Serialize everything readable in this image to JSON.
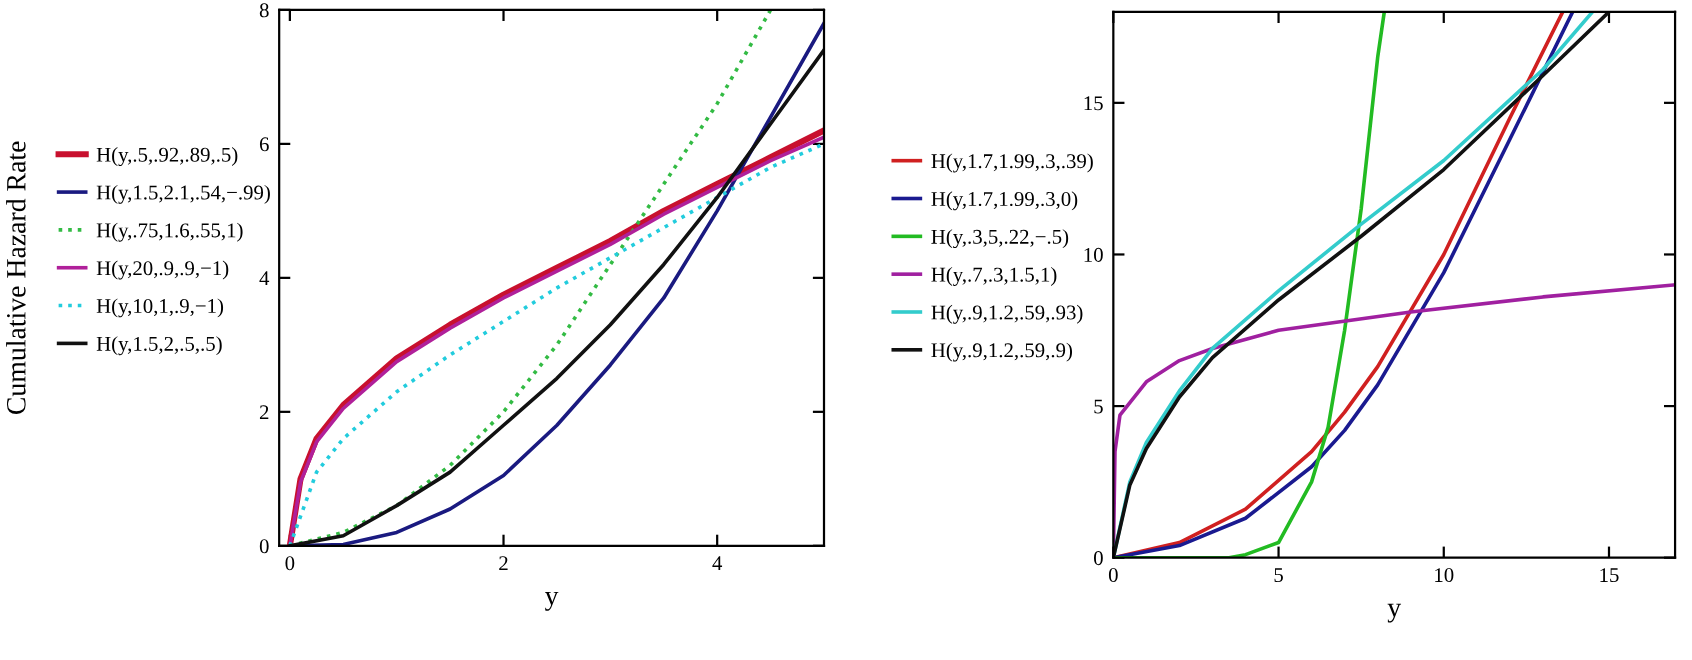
{
  "chart_data": [
    {
      "type": "line",
      "xlabel": "y",
      "ylabel": "Cumulative Hazard Rate",
      "xlim": [
        -0.1,
        5
      ],
      "ylim": [
        0,
        8
      ],
      "xticks": [
        0,
        2,
        4
      ],
      "yticks": [
        0,
        2,
        4,
        6,
        8
      ],
      "legend": "left",
      "series": [
        {
          "name": "H(y,.5,.92,.89,.5)",
          "color": "#c8102e",
          "line_style": "solid",
          "x": [
            0,
            0.1,
            0.25,
            0.5,
            1,
            1.5,
            2,
            2.5,
            3,
            3.5,
            4,
            4.5,
            5
          ],
          "values": [
            0,
            1.0,
            1.6,
            2.1,
            2.8,
            3.3,
            3.75,
            4.15,
            4.55,
            5.0,
            5.4,
            5.8,
            6.2
          ]
        },
        {
          "name": "H(y,1.5,2.1,.54,−.99)",
          "color": "#1a1a80",
          "line_style": "solid",
          "x": [
            0,
            0.5,
            1,
            1.5,
            2,
            2.5,
            3,
            3.5,
            4,
            4.5,
            5
          ],
          "values": [
            0,
            0.02,
            0.2,
            0.55,
            1.05,
            1.8,
            2.7,
            3.7,
            5.0,
            6.4,
            7.8
          ]
        },
        {
          "name": "H(y,.75,1.6,.55,1)",
          "color": "#33bb44",
          "line_style": "dotted",
          "x": [
            0,
            0.5,
            1,
            1.5,
            2,
            2.5,
            3,
            3.5,
            4,
            4.5
          ],
          "values": [
            0,
            0.2,
            0.6,
            1.2,
            2.0,
            3.0,
            4.2,
            5.4,
            6.6,
            8.0
          ]
        },
        {
          "name": "H(y,20,.9,.9,−1)",
          "color": "#b0209a",
          "line_style": "solid",
          "x": [
            0,
            0.1,
            0.25,
            0.5,
            1,
            1.5,
            2,
            2.5,
            3,
            3.5,
            4,
            4.5,
            5
          ],
          "values": [
            0,
            0.95,
            1.55,
            2.05,
            2.75,
            3.25,
            3.7,
            4.1,
            4.5,
            4.95,
            5.35,
            5.75,
            6.1
          ]
        },
        {
          "name": "H(y,10,1,.9,−1)",
          "color": "#22ccdd",
          "line_style": "dotted",
          "x": [
            0,
            0.25,
            0.5,
            1,
            1.5,
            2,
            2.5,
            3,
            3.5,
            4,
            4.5,
            5
          ],
          "values": [
            0,
            1.1,
            1.6,
            2.3,
            2.85,
            3.35,
            3.85,
            4.3,
            4.75,
            5.2,
            5.65,
            6.0
          ]
        },
        {
          "name": "H(y,1.5,2,.5,.5)",
          "color": "#111111",
          "line_style": "solid",
          "x": [
            0,
            0.5,
            1,
            1.5,
            2,
            2.5,
            3,
            3.5,
            4,
            4.5,
            5
          ],
          "values": [
            0,
            0.15,
            0.6,
            1.1,
            1.8,
            2.5,
            3.3,
            4.2,
            5.2,
            6.3,
            7.4
          ]
        }
      ]
    },
    {
      "type": "line",
      "xlabel": "y",
      "xlim": [
        0,
        17
      ],
      "ylim": [
        0,
        18
      ],
      "xticks": [
        0,
        5,
        10,
        15
      ],
      "yticks": [
        0,
        5,
        10,
        15
      ],
      "legend": "left",
      "series": [
        {
          "name": "H(y,1.7,1.99,.3,.39)",
          "color": "#d02020",
          "line_style": "solid",
          "x": [
            0,
            2,
            4,
            6,
            7,
            8,
            10,
            12,
            13.6
          ],
          "values": [
            0,
            0.5,
            1.6,
            3.5,
            4.8,
            6.3,
            10,
            14.5,
            18
          ]
        },
        {
          "name": "H(y,1.7,1.99,.3,0)",
          "color": "#1a1a90",
          "line_style": "solid",
          "x": [
            0,
            2,
            4,
            6,
            7,
            8,
            10,
            12,
            13.9
          ],
          "values": [
            0,
            0.4,
            1.3,
            3.0,
            4.2,
            5.7,
            9.4,
            13.8,
            18
          ]
        },
        {
          "name": "H(y,.3,5,.22,−.5)",
          "color": "#22bb22",
          "line_style": "solid",
          "x": [
            0,
            3.5,
            4,
            5,
            6,
            6.5,
            7,
            7.5,
            8,
            8.2
          ],
          "values": [
            0,
            0,
            0.1,
            0.5,
            2.5,
            4.3,
            7.5,
            11.5,
            16.5,
            18
          ]
        },
        {
          "name": "H(y,.7,.3,1.5,1)",
          "color": "#a020a0",
          "line_style": "solid",
          "x": [
            0,
            0.05,
            0.2,
            1,
            2,
            3,
            5,
            9,
            13,
            17
          ],
          "values": [
            0,
            3.5,
            4.7,
            5.8,
            6.5,
            6.9,
            7.5,
            8.1,
            8.6,
            9.0
          ]
        },
        {
          "name": "H(y,.9,1.2,.59,.93)",
          "color": "#33cccc",
          "line_style": "solid",
          "x": [
            0,
            0.5,
            1,
            2,
            3,
            5,
            7.5,
            10,
            13,
            14.5
          ],
          "values": [
            0,
            2.5,
            3.8,
            5.5,
            6.9,
            8.8,
            11.0,
            13.1,
            16.1,
            18
          ]
        },
        {
          "name": "H(y,.9,1.2,.59,.9)",
          "color": "#111111",
          "line_style": "solid",
          "x": [
            0,
            0.5,
            1,
            2,
            3,
            5,
            7.5,
            10,
            13,
            15
          ],
          "values": [
            0,
            2.4,
            3.6,
            5.3,
            6.6,
            8.5,
            10.6,
            12.8,
            15.9,
            18
          ]
        }
      ]
    }
  ]
}
